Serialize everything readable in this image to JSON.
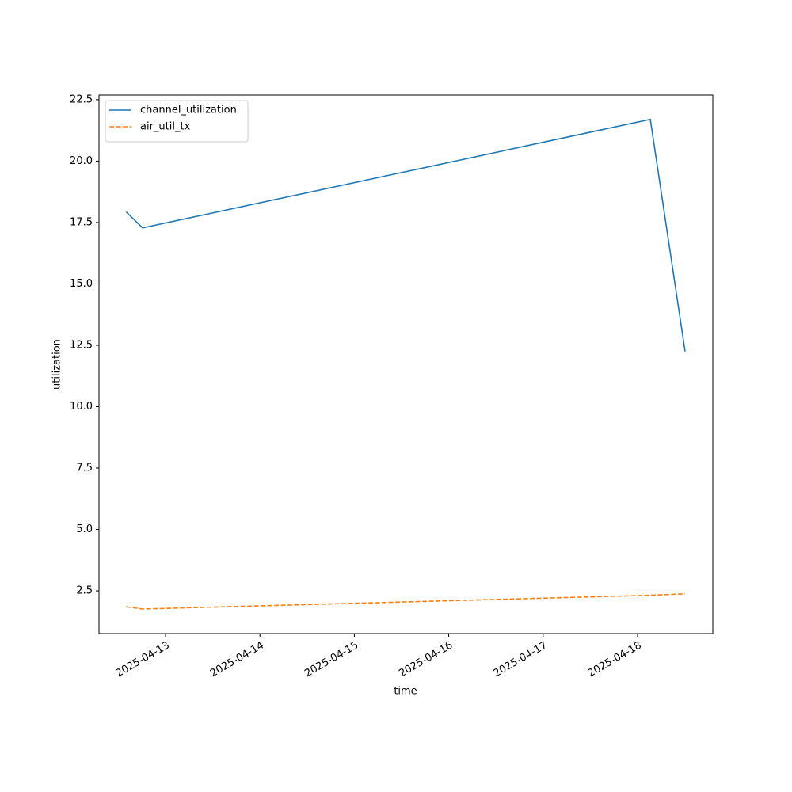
{
  "chart_data": {
    "type": "line",
    "x_label": "time",
    "y_label": "utilization",
    "x": [
      "2025-04-12T14:00",
      "2025-04-12T18:10",
      "2025-04-18T03:15",
      "2025-04-18T12:05"
    ],
    "series": [
      {
        "name": "channel_utilization",
        "color": "#1f77b4",
        "dash": "solid",
        "values": [
          17.93,
          17.28,
          21.7,
          12.25
        ]
      },
      {
        "name": "air_util_tx",
        "color": "#ff7f0e",
        "dash": "dashed",
        "values": [
          1.85,
          1.76,
          2.32,
          2.38
        ]
      }
    ],
    "xlim": [
      "2025-04-12T07:05",
      "2025-04-18T19:08"
    ],
    "xticks": [
      "2025-04-13",
      "2025-04-14",
      "2025-04-15",
      "2025-04-16",
      "2025-04-17",
      "2025-04-18"
    ],
    "ylim": [
      0.76,
      22.69
    ],
    "yticks": [
      2.5,
      {
        "value": 5,
        "label": "5.0"
      },
      7.5,
      {
        "value": 10,
        "label": "10.0"
      },
      12.5,
      {
        "value": 15,
        "label": "15.0"
      },
      17.5,
      {
        "value": 20,
        "label": "20.0"
      },
      22.5
    ],
    "grid": false,
    "legend": "upper left"
  }
}
